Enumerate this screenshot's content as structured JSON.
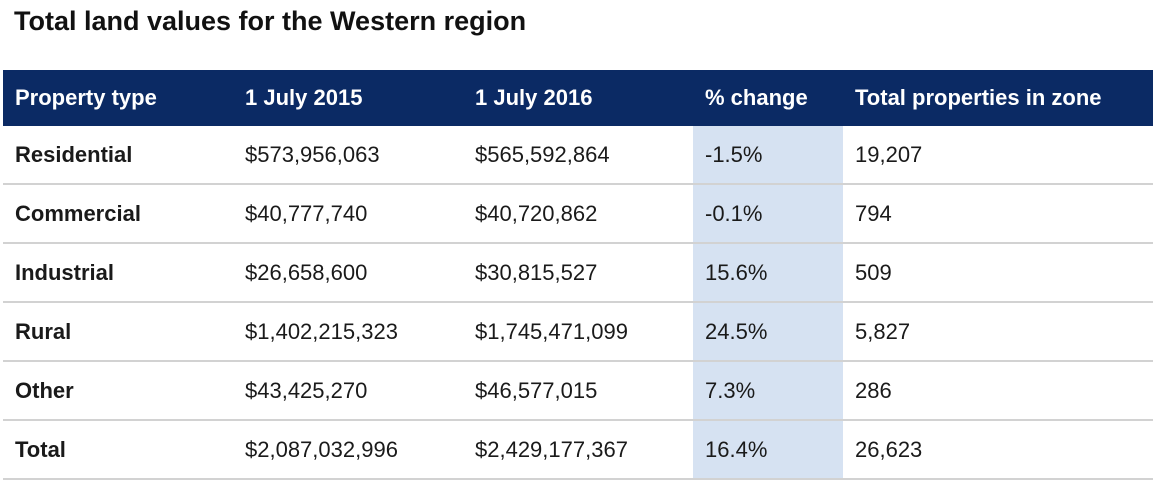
{
  "title": "Total land values for the Western region",
  "table": {
    "headers": [
      "Property type",
      "1 July 2015",
      "1 July 2016",
      "% change",
      "Total properties in zone"
    ],
    "rows": [
      {
        "type": "Residential",
        "v2015": "$573,956,063",
        "v2016": "$565,592,864",
        "change": "-1.5%",
        "total": "19,207"
      },
      {
        "type": "Commercial",
        "v2015": "$40,777,740",
        "v2016": "$40,720,862",
        "change": "-0.1%",
        "total": "794"
      },
      {
        "type": "Industrial",
        "v2015": "$26,658,600",
        "v2016": "$30,815,527",
        "change": "15.6%",
        "total": "509"
      },
      {
        "type": "Rural",
        "v2015": "$1,402,215,323",
        "v2016": "$1,745,471,099",
        "change": "24.5%",
        "total": "5,827"
      },
      {
        "type": "Other",
        "v2015": "$43,425,270",
        "v2016": "$46,577,015",
        "change": "7.3%",
        "total": "286"
      },
      {
        "type": "Total",
        "v2015": "$2,087,032,996",
        "v2016": "$2,429,177,367",
        "change": "16.4%",
        "total": "26,623"
      }
    ]
  },
  "colors": {
    "header_bg": "#0b2a64",
    "header_text": "#ffffff",
    "highlight_column": "#d6e2f2",
    "row_divider": "#d2d2d2"
  }
}
